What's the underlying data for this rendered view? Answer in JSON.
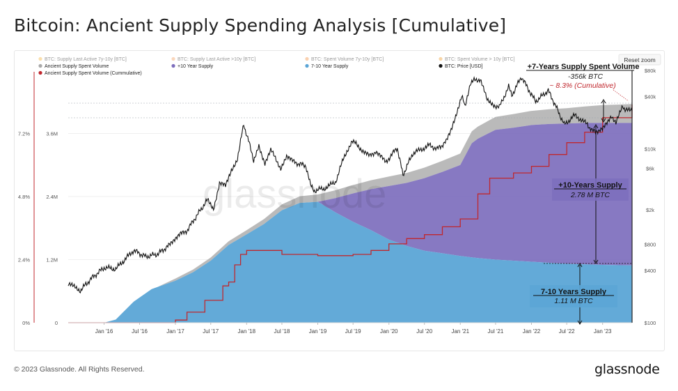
{
  "page": {
    "title": "Bitcoin: Ancient Supply Spending Analysis [Cumulative]",
    "copyright": "© 2023 Glassnode. All Rights Reserved.",
    "brand": "glassnode",
    "watermark": "glassnode",
    "reset_zoom": "Reset zoom"
  },
  "legend": [
    {
      "label": "BTC: Supply Last Active 7y-10y [BTC]",
      "color": "#f5b74a",
      "muted": true
    },
    {
      "label": "BTC: Supply Last Active >10y [BTC]",
      "color": "#f5a76a",
      "muted": true
    },
    {
      "label": "BTC: Spent Volume 7y-10y [BTC]",
      "color": "#f59a50",
      "muted": true
    },
    {
      "label": "BTC: Spent Volume > 10y [BTC]",
      "color": "#f0a23a",
      "muted": true
    },
    {
      "label": "Ancient Supply Spent Volume",
      "color": "#a9a9a9",
      "muted": false
    },
    {
      "label": "+10 Year Supply",
      "color": "#7d6ebd",
      "muted": false
    },
    {
      "label": "7-10 Year Supply",
      "color": "#5ba5d6",
      "muted": false
    },
    {
      "label": "BTC: Price [USD]",
      "color": "#111111",
      "muted": false
    },
    {
      "label": "Ancient Supply Spent Volume (Cummulative)",
      "color": "#c0272d",
      "muted": false
    }
  ],
  "annotations": {
    "spent_title": "+7-Years Supply Spent Volume",
    "spent_value": "-356k BTC",
    "spent_pct": "~ 8.3% (Cumulative)",
    "ten_title": "+10-Years Supply",
    "ten_value": "2.78 M BTC",
    "seven_title": "7-10 Years Supply",
    "seven_value": "1.11 M BTC"
  },
  "colors": {
    "supply_7_10": "#5ba5d6",
    "supply_10": "#7d6ebd",
    "spent": "#b3b3b3",
    "price": "#111111",
    "cumulative": "#c0272d",
    "axis_line": "#c0272d"
  },
  "chart_data": {
    "type": "area",
    "title": "Bitcoin: Ancient Supply Spending Analysis [Cumulative]",
    "x_range": [
      "2015-07-01",
      "2023-06-01"
    ],
    "x_ticks": [
      {
        "label": "Jan '16",
        "date": "2016-01-01"
      },
      {
        "label": "Jul '16",
        "date": "2016-07-01"
      },
      {
        "label": "Jan '17",
        "date": "2017-01-01"
      },
      {
        "label": "Jul '17",
        "date": "2017-07-01"
      },
      {
        "label": "Jan '18",
        "date": "2018-01-01"
      },
      {
        "label": "Jul '18",
        "date": "2018-07-01"
      },
      {
        "label": "Jan '19",
        "date": "2019-01-01"
      },
      {
        "label": "Jul '19",
        "date": "2019-07-01"
      },
      {
        "label": "Jan '20",
        "date": "2020-01-01"
      },
      {
        "label": "Jul '20",
        "date": "2020-07-01"
      },
      {
        "label": "Jan '21",
        "date": "2021-01-01"
      },
      {
        "label": "Jul '21",
        "date": "2021-07-01"
      },
      {
        "label": "Jan '22",
        "date": "2022-01-01"
      },
      {
        "label": "Jul '22",
        "date": "2022-07-01"
      },
      {
        "label": "Jan '23",
        "date": "2023-01-01"
      }
    ],
    "y_left_percent": {
      "ticks": [
        "0%",
        "2.4%",
        "4.8%",
        "7.2%"
      ],
      "values": [
        0,
        2.4,
        4.8,
        7.2
      ],
      "range": [
        0,
        9.6
      ]
    },
    "y_left_supply": {
      "ticks": [
        "0",
        "1.2M",
        "2.4M",
        "3.6M"
      ],
      "values": [
        0,
        1200000,
        2400000,
        3600000
      ],
      "range": [
        0,
        4800000
      ]
    },
    "y_right_price": {
      "scale": "log",
      "ticks": [
        "$100",
        "$400",
        "$800",
        "$2k",
        "$6k",
        "$10k",
        "$40k",
        "$80k"
      ],
      "values": [
        100,
        400,
        800,
        2000,
        6000,
        10000,
        40000,
        80000
      ],
      "range": [
        100,
        80000
      ]
    },
    "series": [
      {
        "name": "7-10 Year Supply",
        "axis": "supply",
        "points": [
          [
            "2015-07-01",
            0
          ],
          [
            "2016-01-01",
            0
          ],
          [
            "2016-03-01",
            60000
          ],
          [
            "2016-06-01",
            400000
          ],
          [
            "2016-09-01",
            640000
          ],
          [
            "2017-01-01",
            800000
          ],
          [
            "2017-04-01",
            960000
          ],
          [
            "2017-07-01",
            1180000
          ],
          [
            "2017-10-01",
            1480000
          ],
          [
            "2018-01-01",
            1680000
          ],
          [
            "2018-04-01",
            1880000
          ],
          [
            "2018-07-01",
            2140000
          ],
          [
            "2018-10-01",
            2280000
          ],
          [
            "2019-01-01",
            2300000
          ],
          [
            "2019-01-15",
            2270000
          ],
          [
            "2019-04-01",
            2100000
          ],
          [
            "2019-07-01",
            1920000
          ],
          [
            "2019-10-01",
            1760000
          ],
          [
            "2020-01-01",
            1580000
          ],
          [
            "2020-04-01",
            1460000
          ],
          [
            "2020-07-01",
            1370000
          ],
          [
            "2020-10-01",
            1320000
          ],
          [
            "2021-01-01",
            1270000
          ],
          [
            "2021-04-01",
            1230000
          ],
          [
            "2021-07-01",
            1200000
          ],
          [
            "2021-10-01",
            1180000
          ],
          [
            "2022-01-01",
            1160000
          ],
          [
            "2022-04-01",
            1140000
          ],
          [
            "2022-07-01",
            1120000
          ],
          [
            "2022-10-01",
            1110000
          ],
          [
            "2023-01-01",
            1100000
          ],
          [
            "2023-06-01",
            1090000
          ]
        ]
      },
      {
        "name": "+10 Year Supply",
        "axis": "supply",
        "points": [
          [
            "2019-01-01",
            0
          ],
          [
            "2019-01-15",
            40000
          ],
          [
            "2019-04-01",
            270000
          ],
          [
            "2019-07-01",
            540000
          ],
          [
            "2019-10-01",
            780000
          ],
          [
            "2020-01-01",
            1020000
          ],
          [
            "2020-04-01",
            1200000
          ],
          [
            "2020-07-01",
            1380000
          ],
          [
            "2020-10-01",
            1550000
          ],
          [
            "2021-01-01",
            1730000
          ],
          [
            "2021-03-01",
            2170000
          ],
          [
            "2021-04-01",
            2270000
          ],
          [
            "2021-07-01",
            2470000
          ],
          [
            "2021-10-01",
            2530000
          ],
          [
            "2022-01-01",
            2600000
          ],
          [
            "2022-04-01",
            2640000
          ],
          [
            "2022-07-01",
            2670000
          ],
          [
            "2022-10-01",
            2690000
          ],
          [
            "2023-01-01",
            2700000
          ],
          [
            "2023-06-01",
            2710000
          ]
        ]
      },
      {
        "name": "Ancient Supply Spent Volume",
        "axis": "supply",
        "points": [
          [
            "2016-10-01",
            0
          ],
          [
            "2017-01-01",
            40000
          ],
          [
            "2017-07-01",
            60000
          ],
          [
            "2018-01-01",
            80000
          ],
          [
            "2018-07-01",
            110000
          ],
          [
            "2019-01-01",
            140000
          ],
          [
            "2019-07-01",
            160000
          ],
          [
            "2020-01-01",
            180000
          ],
          [
            "2020-07-01",
            200000
          ],
          [
            "2021-01-01",
            220000
          ],
          [
            "2021-06-01",
            240000
          ],
          [
            "2021-10-01",
            260000
          ],
          [
            "2022-01-01",
            270000
          ],
          [
            "2022-07-01",
            290000
          ],
          [
            "2023-01-01",
            340000
          ],
          [
            "2023-06-01",
            360000
          ]
        ]
      },
      {
        "name": "Ancient Supply Spent Volume (Cummulative)",
        "axis": "percent",
        "points": [
          [
            "2015-07-01",
            0
          ],
          [
            "2016-10-01",
            0
          ],
          [
            "2017-01-01",
            0.1
          ],
          [
            "2017-03-01",
            0.4
          ],
          [
            "2017-06-01",
            0.85
          ],
          [
            "2017-09-01",
            1.4
          ],
          [
            "2017-10-01",
            1.55
          ],
          [
            "2017-11-01",
            2.2
          ],
          [
            "2017-12-01",
            2.6
          ],
          [
            "2018-01-01",
            2.75
          ],
          [
            "2018-07-01",
            2.6
          ],
          [
            "2019-01-01",
            2.55
          ],
          [
            "2019-07-01",
            2.6
          ],
          [
            "2019-10-01",
            2.75
          ],
          [
            "2020-01-01",
            3.0
          ],
          [
            "2020-04-01",
            3.2
          ],
          [
            "2020-07-01",
            3.35
          ],
          [
            "2020-10-01",
            3.65
          ],
          [
            "2021-01-01",
            3.95
          ],
          [
            "2021-04-01",
            4.9
          ],
          [
            "2021-06-01",
            5.5
          ],
          [
            "2021-10-01",
            5.7
          ],
          [
            "2022-01-01",
            5.95
          ],
          [
            "2022-04-01",
            6.4
          ],
          [
            "2022-07-01",
            6.85
          ],
          [
            "2022-10-01",
            7.25
          ],
          [
            "2023-01-01",
            7.8
          ],
          [
            "2023-06-01",
            8.3
          ]
        ]
      },
      {
        "name": "BTC: Price [USD]",
        "axis": "price",
        "points": [
          [
            "2015-07-01",
            280
          ],
          [
            "2015-09-01",
            235
          ],
          [
            "2015-11-01",
            330
          ],
          [
            "2016-01-01",
            430
          ],
          [
            "2016-03-01",
            415
          ],
          [
            "2016-06-01",
            680
          ],
          [
            "2016-08-01",
            575
          ],
          [
            "2016-10-01",
            615
          ],
          [
            "2016-12-01",
            780
          ],
          [
            "2017-01-01",
            960
          ],
          [
            "2017-03-01",
            1150
          ],
          [
            "2017-05-01",
            1850
          ],
          [
            "2017-06-15",
            2600
          ],
          [
            "2017-07-15",
            2000
          ],
          [
            "2017-08-15",
            4100
          ],
          [
            "2017-09-15",
            3700
          ],
          [
            "2017-10-15",
            5500
          ],
          [
            "2017-11-15",
            7800
          ],
          [
            "2017-12-17",
            19000
          ],
          [
            "2018-01-15",
            11500
          ],
          [
            "2018-02-06",
            6900
          ],
          [
            "2018-03-05",
            11000
          ],
          [
            "2018-04-05",
            6800
          ],
          [
            "2018-05-05",
            9700
          ],
          [
            "2018-06-25",
            6000
          ],
          [
            "2018-07-25",
            8200
          ],
          [
            "2018-09-01",
            7000
          ],
          [
            "2018-11-01",
            6400
          ],
          [
            "2018-11-25",
            3800
          ],
          [
            "2018-12-15",
            3300
          ],
          [
            "2019-02-01",
            3500
          ],
          [
            "2019-04-01",
            4100
          ],
          [
            "2019-05-15",
            8000
          ],
          [
            "2019-06-26",
            12500
          ],
          [
            "2019-08-01",
            10500
          ],
          [
            "2019-09-24",
            8200
          ],
          [
            "2019-10-26",
            9400
          ],
          [
            "2019-12-15",
            7000
          ],
          [
            "2020-02-13",
            10300
          ],
          [
            "2020-03-13",
            5000
          ],
          [
            "2020-05-01",
            8800
          ],
          [
            "2020-07-27",
            11000
          ],
          [
            "2020-09-05",
            10000
          ],
          [
            "2020-10-20",
            12000
          ],
          [
            "2020-11-15",
            16000
          ],
          [
            "2021-01-08",
            41000
          ],
          [
            "2021-01-25",
            31000
          ],
          [
            "2021-02-21",
            57000
          ],
          [
            "2021-03-13",
            61000
          ],
          [
            "2021-04-14",
            63500
          ],
          [
            "2021-05-19",
            36000
          ],
          [
            "2021-06-22",
            32000
          ],
          [
            "2021-07-20",
            30000
          ],
          [
            "2021-09-06",
            52000
          ],
          [
            "2021-09-22",
            41000
          ],
          [
            "2021-11-10",
            67500
          ],
          [
            "2022-01-22",
            35000
          ],
          [
            "2022-03-28",
            47000
          ],
          [
            "2022-05-12",
            29000
          ],
          [
            "2022-06-18",
            19000
          ],
          [
            "2022-08-13",
            24500
          ],
          [
            "2022-10-15",
            19000
          ],
          [
            "2022-11-09",
            16000
          ],
          [
            "2022-12-31",
            16500
          ],
          [
            "2023-02-15",
            24500
          ],
          [
            "2023-03-10",
            20000
          ],
          [
            "2023-04-14",
            30500
          ],
          [
            "2023-05-01",
            28000
          ],
          [
            "2023-06-01",
            27000
          ]
        ]
      }
    ],
    "grid": true,
    "legend_position": "top-left"
  }
}
